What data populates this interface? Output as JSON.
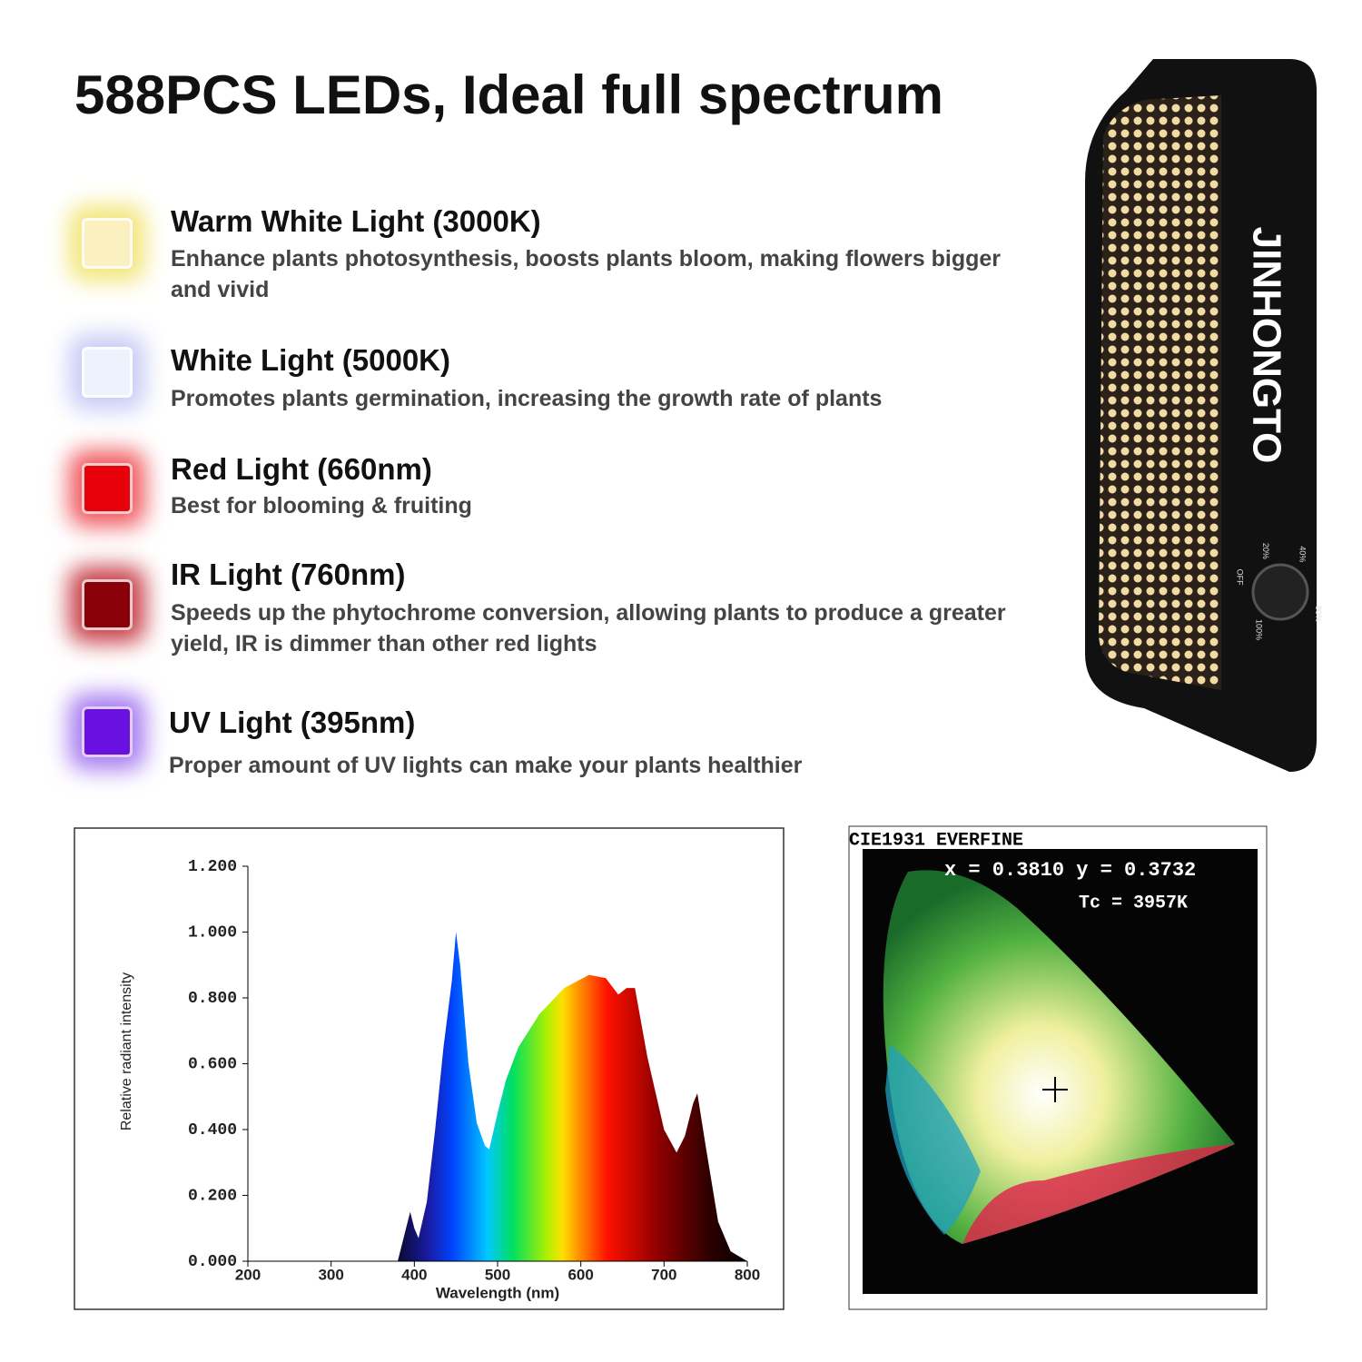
{
  "header": {
    "title": "588PCS LEDs, Ideal full spectrum"
  },
  "features": [
    {
      "name": "Warm White Light (3000K)",
      "description": "Enhance plants photosynthesis, boosts plants bloom, making flowers bigger and vivid"
    },
    {
      "name": "White Light (5000K)",
      "description": "Promotes plants germination, increasing the growth rate of plants"
    },
    {
      "name": "Red Light (660nm)",
      "description": "Best for blooming & fruiting"
    },
    {
      "name": "IR Light (760nm)",
      "description": "Speeds up the phytochrome conversion, allowing plants to produce a greater yield, IR is dimmer than other red lights"
    },
    {
      "name": "UV Light (395nm)",
      "description": "Proper amount of UV lights can make your plants healthier"
    }
  ],
  "product": {
    "brand": "JINHONGTO",
    "dial_labels": [
      "OFF",
      "20%",
      "40%",
      "80%",
      "100%"
    ]
  },
  "spectrum_chart": {
    "type": "area",
    "x_label": "Wavelength (nm)",
    "y_label": "Relative radiant intensity",
    "x": [
      380,
      390,
      395,
      400,
      405,
      415,
      425,
      435,
      445,
      450,
      455,
      465,
      475,
      485,
      490,
      500,
      510,
      525,
      550,
      580,
      610,
      630,
      645,
      655,
      665,
      680,
      700,
      715,
      725,
      735,
      740,
      750,
      765,
      780,
      800
    ],
    "values": [
      0,
      0.1,
      0.15,
      0.1,
      0.07,
      0.18,
      0.4,
      0.65,
      0.85,
      1.0,
      0.9,
      0.6,
      0.42,
      0.35,
      0.34,
      0.45,
      0.55,
      0.65,
      0.75,
      0.83,
      0.87,
      0.86,
      0.81,
      0.83,
      0.83,
      0.62,
      0.4,
      0.33,
      0.38,
      0.48,
      0.51,
      0.35,
      0.12,
      0.03,
      0
    ],
    "xlim": [
      200,
      800
    ],
    "ylim": [
      0,
      1.2
    ],
    "xticks": [
      200,
      300,
      400,
      500,
      600,
      700,
      800
    ],
    "yticks": [
      {
        "value": 0,
        "label": "0.000"
      },
      {
        "value": 0.2,
        "label": "0.200"
      },
      {
        "value": 0.4,
        "label": "0.400"
      },
      {
        "value": 0.6,
        "label": "0.600"
      },
      {
        "value": 0.8,
        "label": "0.800"
      },
      {
        "value": 1.0,
        "label": "1.000"
      },
      {
        "value": 1.2,
        "label": "1.200"
      }
    ]
  },
  "cie_chart": {
    "title": "CIE1931 EVERFINE",
    "coordinates": "x = 0.3810 y = 0.3732",
    "color_temperature": "Tc = 3957K"
  }
}
